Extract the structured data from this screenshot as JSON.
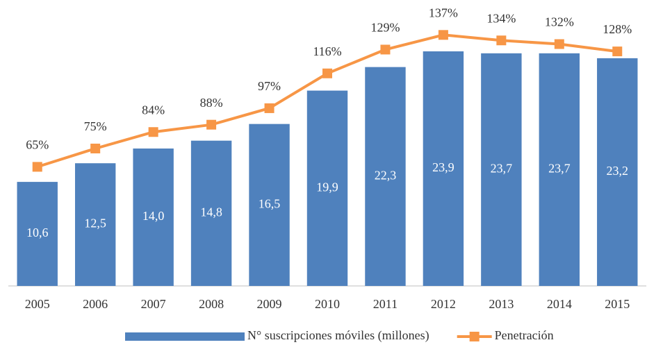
{
  "chart_data": {
    "type": "bar-line",
    "categories": [
      "2005",
      "2006",
      "2007",
      "2008",
      "2009",
      "2010",
      "2011",
      "2012",
      "2013",
      "2014",
      "2015"
    ],
    "series": [
      {
        "name": "N° suscripciones móviles (millones)",
        "type": "bar",
        "color": "#4f81bd",
        "values": [
          10.6,
          12.5,
          14.0,
          14.8,
          16.5,
          19.9,
          22.3,
          23.9,
          23.7,
          23.7,
          23.2
        ],
        "value_labels": [
          "10,6",
          "12,5",
          "14,0",
          "14,8",
          "16,5",
          "19,9",
          "22,3",
          "23,9",
          "23,7",
          "23,7",
          "23,2"
        ]
      },
      {
        "name": "Penetración",
        "type": "line",
        "axis": "y2",
        "color": "#f79646",
        "values": [
          65,
          75,
          84,
          88,
          97,
          116,
          129,
          137,
          134,
          132,
          128
        ],
        "value_labels": [
          "65%",
          "75%",
          "84%",
          "88%",
          "97%",
          "116%",
          "129%",
          "137%",
          "134%",
          "132%",
          "128%"
        ]
      }
    ],
    "ylim": [
      0,
      28
    ],
    "y2lim": [
      0,
      150
    ],
    "legend": "bottom"
  }
}
